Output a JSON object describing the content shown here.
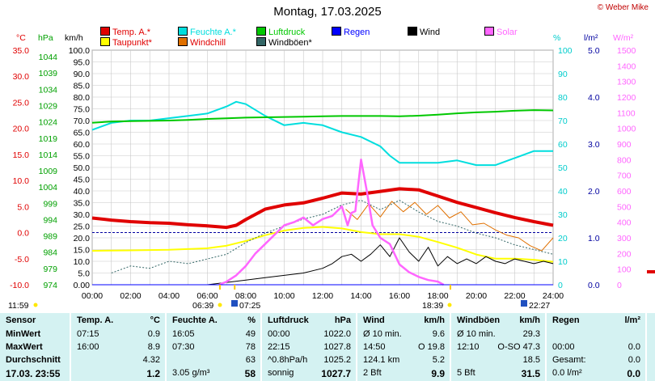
{
  "title": "Montag, 17.03.2025",
  "copyright": "© Weber Mike",
  "axis_units": {
    "temp": "°C",
    "pressure": "hPa",
    "wind": "km/h",
    "humidity": "%",
    "rain": "l/m²",
    "solar": "W/m²"
  },
  "legend": [
    {
      "label": "Temp. A.*",
      "color": "#e00000"
    },
    {
      "label": "Feuchte A.*",
      "color": "#00dede"
    },
    {
      "label": "Luftdruck",
      "color": "#00c800"
    },
    {
      "label": "Regen",
      "color": "#0000ff"
    },
    {
      "label": "Wind",
      "color": "#000000"
    },
    {
      "label": "Solar",
      "color": "#ff66ff"
    },
    {
      "label": "Taupunkt*",
      "color": "#ffff00"
    },
    {
      "label": "Windchill",
      "color": "#e07000"
    },
    {
      "label": "Windböen*",
      "color": "#336666"
    }
  ],
  "chart_data": {
    "type": "line",
    "x_ticks": [
      "00:00",
      "02:00",
      "04:00",
      "06:00",
      "08:00",
      "10:00",
      "12:00",
      "14:00",
      "16:00",
      "18:00",
      "20:00",
      "22:00",
      "24:00"
    ],
    "xlim_hours": [
      0,
      24
    ],
    "axes": {
      "temp": {
        "ylim": [
          -10,
          35
        ],
        "ticks": [
          "35.0",
          "30.0",
          "25.0",
          "20.0",
          "15.0",
          "10.0",
          "5.0",
          "0.0",
          "-5.0",
          "-10.0"
        ],
        "color": "#e00000"
      },
      "pressure": {
        "ylim": [
          974,
          1046
        ],
        "ticks": [
          "1044",
          "1039",
          "1034",
          "1029",
          "1024",
          "1019",
          "1014",
          "1009",
          "1004",
          "999",
          "994",
          "989",
          "984",
          "979",
          "974"
        ],
        "color": "#00a000"
      },
      "wind": {
        "ylim": [
          0,
          100
        ],
        "ticks": [
          "100.0",
          "95.0",
          "90.0",
          "85.0",
          "80.0",
          "75.0",
          "70.0",
          "65.0",
          "60.0",
          "55.0",
          "50.0",
          "45.0",
          "40.0",
          "35.0",
          "30.0",
          "25.0",
          "20.0",
          "15.0",
          "10.0",
          "5.0",
          "0.00"
        ]
      },
      "humidity": {
        "ylim": [
          0,
          100
        ],
        "ticks": [
          "100",
          "90",
          "80",
          "70",
          "60",
          "50",
          "40",
          "30",
          "20",
          "10",
          "0"
        ],
        "color": "#00cccc"
      },
      "rain": {
        "ylim": [
          0,
          5
        ],
        "ticks": [
          "5.0",
          "4.0",
          "3.0",
          "2.0",
          "1.0",
          "0.0"
        ],
        "color": "#0000a0"
      },
      "solar": {
        "ylim": [
          0,
          1500
        ],
        "ticks": [
          "1500",
          "1400",
          "1300",
          "1200",
          "1100",
          "1000",
          "900",
          "800",
          "700",
          "600",
          "500",
          "400",
          "300",
          "200",
          "100",
          "0"
        ],
        "color": "#ff66ff"
      }
    },
    "series": [
      {
        "name": "Temp. A.*",
        "axis": "temp",
        "x": [
          0,
          1,
          2,
          3,
          4,
          5,
          6,
          7,
          7.5,
          8,
          9,
          10,
          11,
          12,
          13,
          14,
          15,
          16,
          17,
          18,
          19,
          20,
          21,
          22,
          23,
          24
        ],
        "y": [
          2.8,
          2.4,
          2.1,
          1.9,
          1.8,
          1.5,
          1.3,
          1.0,
          1.4,
          2.5,
          4.5,
          5.3,
          5.7,
          6.6,
          7.6,
          7.4,
          7.9,
          8.4,
          8.2,
          7.0,
          5.8,
          4.8,
          3.8,
          2.9,
          2.1,
          1.4
        ]
      },
      {
        "name": "Feuchte A.*",
        "axis": "humidity",
        "x": [
          0,
          1,
          2,
          3,
          4,
          5,
          6,
          7,
          7.5,
          8,
          9,
          10,
          11,
          12,
          13,
          14,
          15,
          15.5,
          16,
          17,
          18,
          19,
          20,
          21,
          22,
          23,
          24
        ],
        "y": [
          66,
          69,
          70,
          70,
          71,
          72,
          73,
          76,
          78,
          77,
          72,
          68,
          69,
          68,
          65,
          63,
          59,
          55,
          52,
          52,
          52,
          53,
          51,
          51,
          54,
          57,
          57
        ]
      },
      {
        "name": "Luftdruck",
        "axis": "pressure",
        "x": [
          0,
          1,
          2,
          3,
          4,
          5,
          6,
          7,
          8,
          9,
          10,
          11,
          12,
          13,
          14,
          15,
          16,
          17,
          18,
          19,
          20,
          21,
          22,
          23,
          24
        ],
        "y": [
          1023.7,
          1024.1,
          1024.2,
          1024.3,
          1024.4,
          1024.6,
          1024.9,
          1025.1,
          1025.3,
          1025.4,
          1025.5,
          1025.6,
          1025.7,
          1025.8,
          1025.8,
          1025.8,
          1025.7,
          1025.9,
          1026.2,
          1026.6,
          1026.9,
          1027.1,
          1027.4,
          1027.6,
          1027.5
        ]
      },
      {
        "name": "Taupunkt*",
        "axis": "temp",
        "x": [
          0,
          2,
          4,
          6,
          7,
          8,
          9,
          10,
          11,
          12,
          13,
          14,
          15,
          16,
          17,
          18,
          19,
          20,
          21,
          22,
          23,
          24
        ],
        "y": [
          -3.5,
          -3.4,
          -3.3,
          -3.0,
          -2.5,
          -1.6,
          -0.5,
          0.4,
          0.9,
          1.1,
          0.8,
          0.1,
          -0.3,
          -0.3,
          -0.8,
          -1.8,
          -2.9,
          -4.2,
          -5.0,
          -5.0,
          -5.2,
          -5.6
        ]
      },
      {
        "name": "Windchill",
        "axis": "temp",
        "x": [
          13.2,
          13.8,
          14.4,
          15.0,
          15.6,
          16.2,
          16.8,
          17.4,
          18.0,
          18.6,
          19.2,
          19.8,
          20.4,
          21.0,
          21.6,
          22.2,
          22.8,
          23.4,
          24
        ],
        "y": [
          4.5,
          2.5,
          5.5,
          3.0,
          6.0,
          4.0,
          5.8,
          3.5,
          5.2,
          2.8,
          4.0,
          1.5,
          1.8,
          0.5,
          -0.5,
          -1.0,
          -2.5,
          -3.5,
          -1.0
        ]
      },
      {
        "name": "Wind",
        "axis": "wind",
        "x": [
          6,
          7,
          8,
          9,
          10,
          11,
          12,
          12.5,
          13,
          13.5,
          14,
          14.5,
          15,
          15.5,
          16,
          16.5,
          17,
          17.5,
          18,
          18.5,
          19,
          19.5,
          20,
          20.5,
          21,
          21.5,
          22,
          22.5,
          23,
          23.5,
          24
        ],
        "y": [
          0,
          1,
          2,
          3,
          4,
          5,
          7,
          9,
          12,
          13,
          10,
          13,
          17,
          12,
          20,
          14,
          10,
          16,
          8,
          12,
          9,
          11,
          9,
          12,
          10,
          9,
          11,
          10,
          9,
          10,
          9
        ]
      },
      {
        "name": "Windböen*",
        "axis": "wind",
        "x": [
          1,
          2,
          3,
          4,
          5,
          6,
          7,
          8,
          9,
          10,
          11,
          12,
          13,
          14,
          15,
          16,
          17,
          18,
          19,
          20,
          21,
          22,
          23,
          24
        ],
        "y": [
          5,
          8,
          7,
          10,
          9,
          11,
          13,
          18,
          22,
          25,
          28,
          30,
          34,
          36,
          32,
          36,
          31,
          27,
          25,
          22,
          20,
          17,
          15,
          13
        ]
      },
      {
        "name": "Solar",
        "axis": "solar",
        "x": [
          6.6,
          7,
          7.5,
          8,
          8.5,
          9,
          9.5,
          10,
          10.5,
          11,
          11.5,
          12,
          12.5,
          13,
          13.3,
          13.5,
          13.7,
          14,
          14.3,
          14.6,
          15,
          15.5,
          16,
          16.5,
          17,
          17.5,
          18,
          18.3
        ],
        "y": [
          0,
          20,
          60,
          120,
          200,
          260,
          320,
          380,
          400,
          430,
          380,
          420,
          440,
          500,
          380,
          460,
          470,
          800,
          600,
          380,
          300,
          260,
          130,
          80,
          50,
          30,
          20,
          0
        ]
      },
      {
        "name": "Regen",
        "axis": "rain",
        "x": [
          0,
          24
        ],
        "y": [
          0,
          0
        ]
      }
    ],
    "reference_line": {
      "axis": "temp",
      "value": 0
    },
    "sun_markers": [
      "06:39",
      "07:25",
      "18:39",
      "22:27"
    ],
    "time_label_left": "11:59",
    "grid": true
  },
  "table": {
    "sensor": {
      "title": "Sensor",
      "rows": [
        "MinWert",
        "MaxWert",
        "Durchschnitt",
        "17.03. 23:55"
      ]
    },
    "temp": {
      "title": "Temp. A.",
      "unit": "°C",
      "rows": [
        [
          "07:15",
          "0.9"
        ],
        [
          "16:00",
          "8.9"
        ],
        [
          "",
          "4.32"
        ],
        [
          "",
          "1.2"
        ]
      ]
    },
    "feuchte": {
      "title": "Feuchte A.",
      "unit": "%",
      "rows": [
        [
          "16:05",
          "49"
        ],
        [
          "07:30",
          "78"
        ],
        [
          "",
          "63"
        ],
        [
          "3.05 g/m³",
          "58"
        ]
      ]
    },
    "luftdruck": {
      "title": "Luftdruck",
      "unit": "hPa",
      "rows": [
        [
          "00:00",
          "1022.0"
        ],
        [
          "22:15",
          "1027.8"
        ],
        [
          "^0.8hPa/h",
          "1025.2"
        ],
        [
          "sonnig",
          "1027.7"
        ]
      ]
    },
    "wind": {
      "title": "Wind",
      "unit": "km/h",
      "rows": [
        [
          "Ø 10 min.",
          "9.6"
        ],
        [
          "14:50",
          "O 19.8"
        ],
        [
          "124.1 km",
          "5.2"
        ],
        [
          "2 Bft",
          "9.9"
        ]
      ]
    },
    "windboeen": {
      "title": "Windböen",
      "unit": "km/h",
      "rows": [
        [
          "Ø 10 min.",
          "29.3"
        ],
        [
          "12:10",
          "O-SO 47.3"
        ],
        [
          "",
          "18.5"
        ],
        [
          "5 Bft",
          "31.5"
        ]
      ]
    },
    "regen": {
      "title": "Regen",
      "unit": "l/m²",
      "rows": [
        [
          "",
          ""
        ],
        [
          "00:00",
          "0.0"
        ],
        [
          "Gesamt:",
          "0.0"
        ],
        [
          "0.0 l/m²",
          "0.0"
        ]
      ]
    }
  }
}
